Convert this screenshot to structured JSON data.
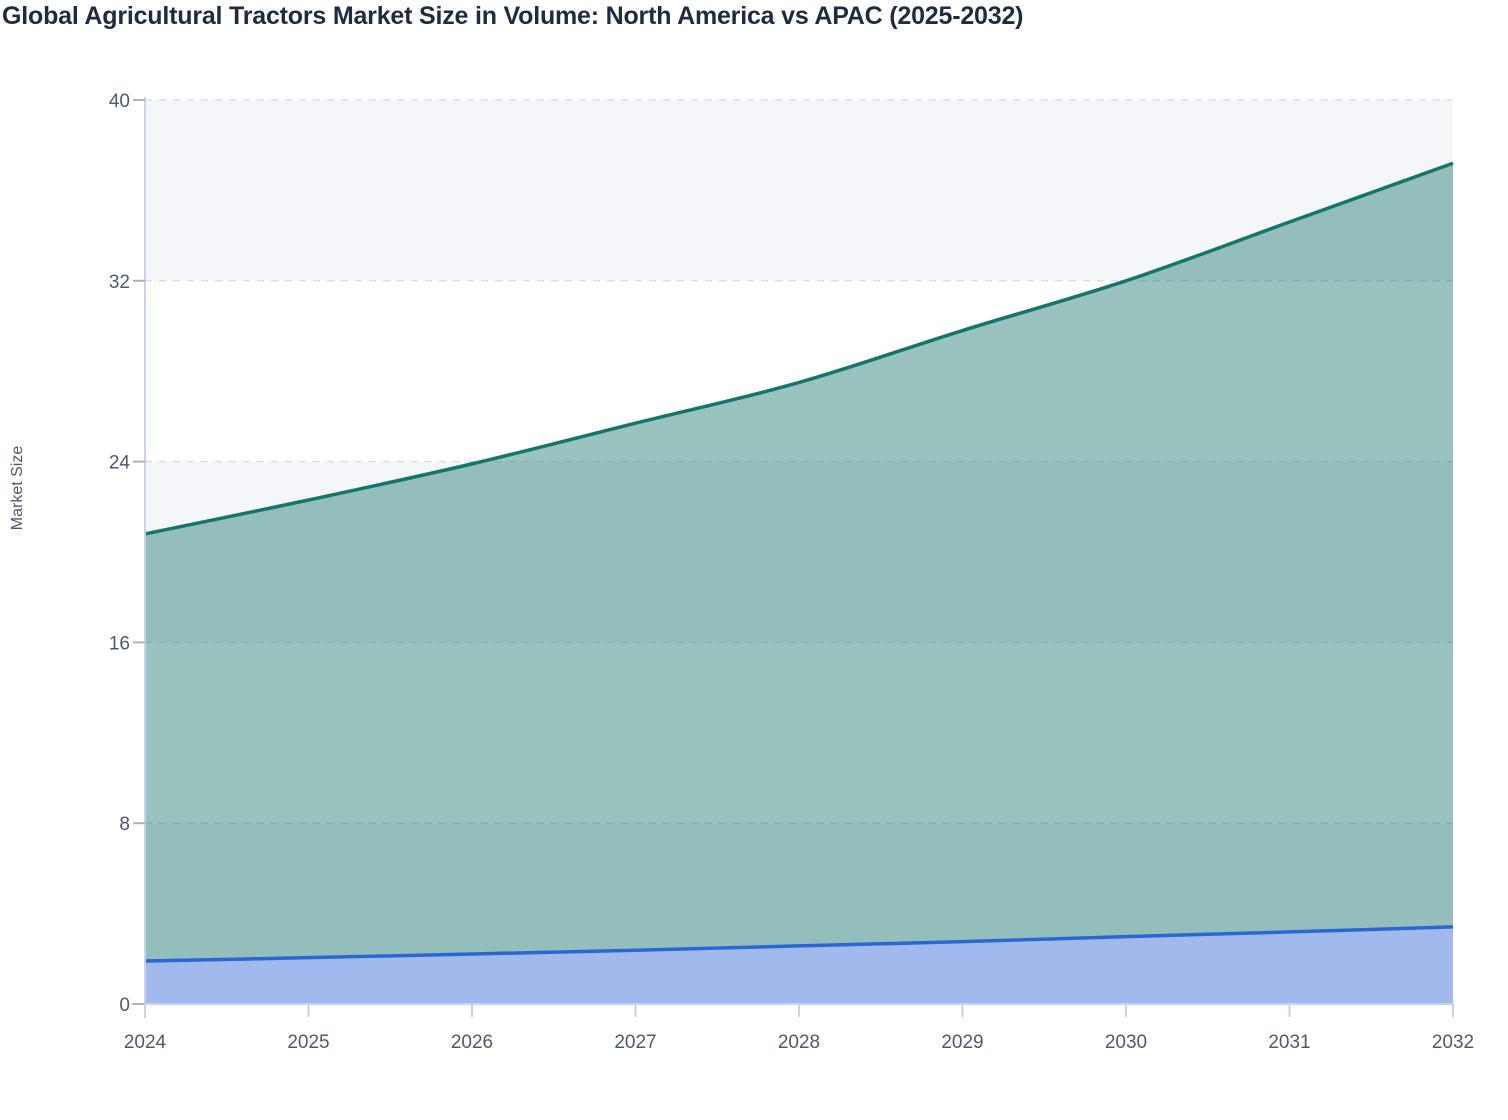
{
  "title": "Global Agricultural Tractors Market Size in Volume: North America vs APAC (2025-2032)",
  "chart_data": {
    "type": "area",
    "stacked": true,
    "title": "Global Agricultural Tractors Market Size in Volume: North America vs APAC (2025-2032)",
    "xlabel": "",
    "ylabel": "Market Size",
    "x": [
      2024,
      2025,
      2026,
      2027,
      2028,
      2029,
      2030,
      2031,
      2032
    ],
    "x_tick_labels": [
      "2024",
      "2025",
      "2026",
      "2027",
      "2028",
      "2029",
      "2030",
      "2031",
      "2032"
    ],
    "yticks": [
      0,
      8,
      16,
      24,
      32,
      40
    ],
    "ylim": [
      0,
      40
    ],
    "grid": "horizontal-dashed",
    "alternating_row_bands": true,
    "legend_position": "none",
    "series": [
      {
        "name": "North America",
        "line_color": "#2b66d4",
        "fill_color": "rgba(61,110,225,0.45)",
        "values": [
          1.9,
          2.05,
          2.21,
          2.38,
          2.57,
          2.76,
          2.98,
          3.19,
          3.41
        ]
      },
      {
        "name": "APAC",
        "line_color": "#15756b",
        "fill_color": "rgba(21,117,107,0.43)",
        "values": [
          18.9,
          20.25,
          21.69,
          23.32,
          24.93,
          27.04,
          29.02,
          31.41,
          33.79
        ]
      }
    ],
    "stack_top_values": [
      20.8,
      22.3,
      23.9,
      25.7,
      27.5,
      29.8,
      32.0,
      34.6,
      37.2
    ]
  },
  "colors": {
    "background": "#ffffff",
    "title": "#1f2c40",
    "band": "#f5f6fa",
    "gridline": "#d9dde7",
    "axis": "#c7d2ec",
    "x_tick": "#c7d2ec",
    "y_tick": "#aab2c0",
    "tick_label": "#4d5a6b"
  }
}
